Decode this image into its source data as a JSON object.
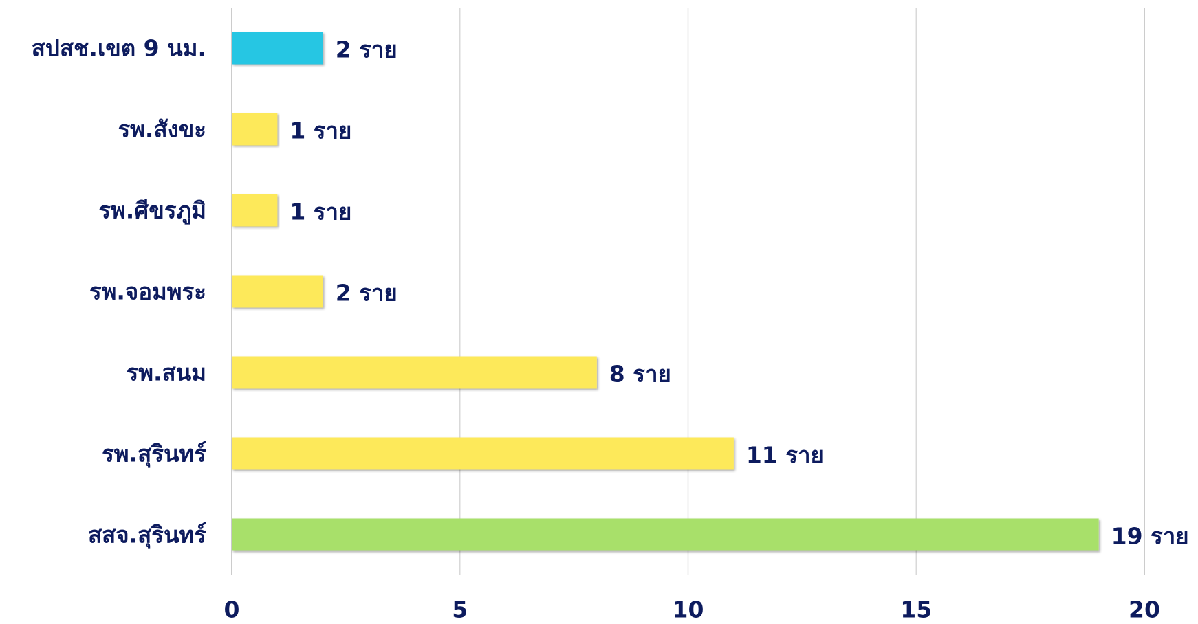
{
  "chart_data": {
    "type": "bar",
    "categories": [
      "สปสช.เขต 9 นม.",
      "รพ.สังขะ",
      "รพ.ศีขรภูมิ",
      "รพ.จอมพระ",
      "รพ.สนม",
      "รพ.สุรินทร์",
      "สสจ.สุรินทร์"
    ],
    "values": [
      2,
      1,
      1,
      2,
      8,
      11,
      19
    ],
    "value_labels": [
      "2 ราย",
      "1 ราย",
      "1 ราย",
      "2 ราย",
      "8 ราย",
      "11 ราย",
      "19 ราย"
    ],
    "colors": [
      "#27c6e3",
      "#fde95a",
      "#fde95a",
      "#fde95a",
      "#fde95a",
      "#fde95a",
      "#a8e06b"
    ],
    "xlim": [
      0,
      20
    ],
    "xticks": [
      0,
      5,
      10,
      15,
      20
    ],
    "grid": true
  }
}
